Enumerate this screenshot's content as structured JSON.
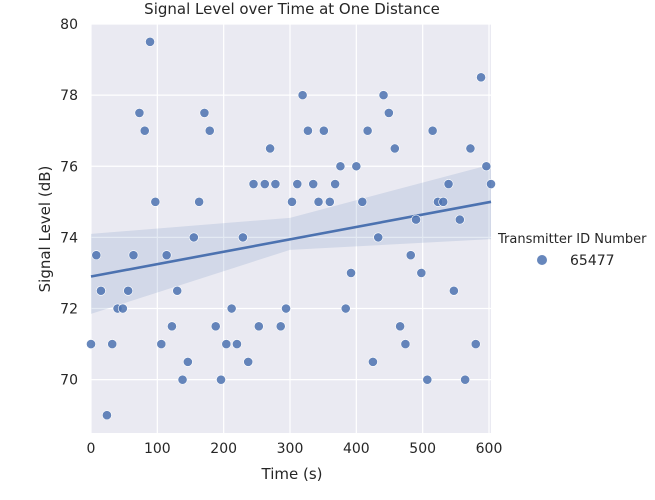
{
  "chart_data": {
    "type": "scatter",
    "title": "Signal Level over Time at One Distance",
    "xlabel": "Time (s)",
    "ylabel": "Signal Level (dB)",
    "xlim": [
      0,
      603
    ],
    "ylim": [
      68.5,
      80
    ],
    "x_ticks": [
      0,
      100,
      200,
      300,
      400,
      500,
      600
    ],
    "y_ticks": [
      70,
      72,
      74,
      76,
      78,
      80
    ],
    "grid": true,
    "legend": {
      "title": "Transmitter ID Number",
      "placement": "right"
    },
    "series": [
      {
        "name": "65477",
        "color": "#4c72b0",
        "points": [
          [
            0,
            71.0
          ],
          [
            8,
            73.5
          ],
          [
            15,
            72.5
          ],
          [
            24,
            69.0
          ],
          [
            32,
            71.0
          ],
          [
            40,
            72.0
          ],
          [
            48,
            72.0
          ],
          [
            56,
            72.5
          ],
          [
            64,
            73.5
          ],
          [
            73,
            77.5
          ],
          [
            81,
            77.0
          ],
          [
            89,
            79.5
          ],
          [
            97,
            75.0
          ],
          [
            106,
            71.0
          ],
          [
            114,
            73.5
          ],
          [
            122,
            71.5
          ],
          [
            130,
            72.5
          ],
          [
            138,
            70.0
          ],
          [
            146,
            70.5
          ],
          [
            155,
            74.0
          ],
          [
            163,
            75.0
          ],
          [
            171,
            77.5
          ],
          [
            179,
            77.0
          ],
          [
            188,
            71.5
          ],
          [
            196,
            70.0
          ],
          [
            204,
            71.0
          ],
          [
            212,
            72.0
          ],
          [
            220,
            71.0
          ],
          [
            229,
            74.0
          ],
          [
            237,
            70.5
          ],
          [
            245,
            75.5
          ],
          [
            253,
            71.5
          ],
          [
            262,
            75.5
          ],
          [
            270,
            76.5
          ],
          [
            278,
            75.5
          ],
          [
            286,
            71.5
          ],
          [
            294,
            72.0
          ],
          [
            303,
            75.0
          ],
          [
            311,
            75.5
          ],
          [
            319,
            78.0
          ],
          [
            327,
            77.0
          ],
          [
            335,
            75.5
          ],
          [
            343,
            75.0
          ],
          [
            351,
            77.0
          ],
          [
            360,
            75.0
          ],
          [
            368,
            75.5
          ],
          [
            376,
            76.0
          ],
          [
            384,
            72.0
          ],
          [
            392,
            73.0
          ],
          [
            400,
            76.0
          ],
          [
            409,
            75.0
          ],
          [
            417,
            77.0
          ],
          [
            425,
            70.5
          ],
          [
            433,
            74.0
          ],
          [
            441,
            78.0
          ],
          [
            449,
            77.5
          ],
          [
            458,
            76.5
          ],
          [
            466,
            71.5
          ],
          [
            474,
            71.0
          ],
          [
            482,
            73.5
          ],
          [
            490,
            74.5
          ],
          [
            498,
            73.0
          ],
          [
            507,
            70.0
          ],
          [
            515,
            77.0
          ],
          [
            523,
            75.0
          ],
          [
            531,
            75.0
          ],
          [
            539,
            75.5
          ],
          [
            547,
            72.5
          ],
          [
            556,
            74.5
          ],
          [
            564,
            70.0
          ],
          [
            572,
            76.5
          ],
          [
            580,
            71.0
          ],
          [
            588,
            78.5
          ],
          [
            596,
            76.0
          ],
          [
            603,
            75.5
          ]
        ]
      }
    ],
    "regression": {
      "line": [
        [
          0,
          72.9
        ],
        [
          603,
          75.0
        ]
      ],
      "ci_upper": [
        [
          0,
          74.1
        ],
        [
          300,
          74.55
        ],
        [
          603,
          76.05
        ]
      ],
      "ci_lower": [
        [
          0,
          71.85
        ],
        [
          300,
          73.65
        ],
        [
          603,
          73.95
        ]
      ],
      "color": "#4c72b0"
    }
  }
}
